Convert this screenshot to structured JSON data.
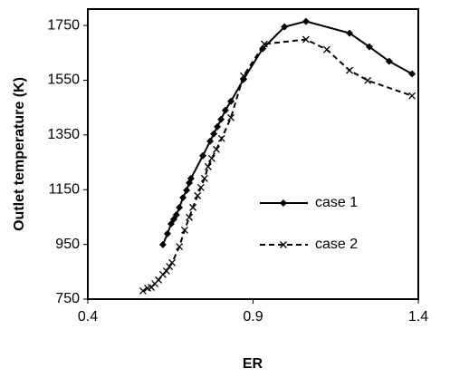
{
  "chart_data": {
    "type": "line",
    "x_label": "ER",
    "y_label": "Outlet temperature (K)",
    "xlim": [
      0.4,
      1.4
    ],
    "xticks": [
      0.4,
      0.9,
      1.4
    ],
    "ylim": [
      750,
      1810
    ],
    "yticks": [
      750,
      950,
      1150,
      1350,
      1550,
      1750
    ],
    "legend": "right",
    "series": [
      {
        "name": "case 1",
        "color": "#000000",
        "linestyle": "solid",
        "marker": "diamond",
        "x": [
          0.627,
          0.641,
          0.652,
          0.66,
          0.668,
          0.677,
          0.688,
          0.699,
          0.707,
          0.712,
          0.748,
          0.77,
          0.781,
          0.792,
          0.803,
          0.816,
          0.833,
          0.871,
          0.929,
          0.995,
          1.06,
          1.192,
          1.252,
          1.312,
          1.381
        ],
        "values": [
          949,
          989,
          1025,
          1042,
          1058,
          1085,
          1121,
          1148,
          1175,
          1191,
          1274,
          1327,
          1354,
          1380,
          1407,
          1440,
          1473,
          1553,
          1665,
          1745,
          1765,
          1722,
          1672,
          1619,
          1573
        ]
      },
      {
        "name": "case 2",
        "color": "#000000",
        "linestyle": "dashed",
        "marker": "x",
        "x": [
          0.567,
          0.581,
          0.592,
          0.603,
          0.614,
          0.627,
          0.638,
          0.647,
          0.655,
          0.677,
          0.693,
          0.707,
          0.718,
          0.732,
          0.742,
          0.753,
          0.764,
          0.775,
          0.789,
          0.805,
          0.833,
          0.871,
          0.934,
          1.06,
          1.123,
          1.192,
          1.247,
          1.381
        ],
        "values": [
          780,
          790,
          793,
          806,
          820,
          840,
          853,
          869,
          883,
          942,
          1002,
          1049,
          1085,
          1128,
          1158,
          1191,
          1234,
          1264,
          1297,
          1337,
          1413,
          1566,
          1682,
          1699,
          1662,
          1586,
          1549,
          1493
        ]
      }
    ]
  }
}
